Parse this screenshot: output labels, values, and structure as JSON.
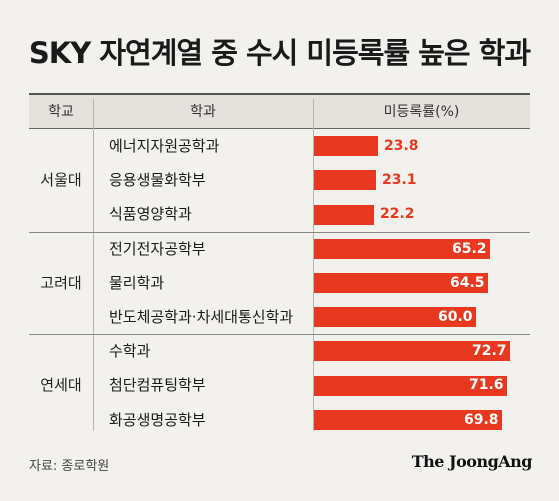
{
  "title": "SKY 자연계열 중 수시 미등록률 높은 학과",
  "headers": {
    "school": "학교",
    "dept": "학과",
    "rate": "미등록률(%)"
  },
  "chart_data": {
    "type": "bar",
    "title": "SKY 자연계열 중 수시 미등록률 높은 학과",
    "ylabel": "미등록률(%)",
    "ylim": [
      0,
      80
    ],
    "groups": [
      {
        "school": "서울대",
        "rows": [
          {
            "dept": "에너지자원공학과",
            "value": 23.8,
            "label": "23.8"
          },
          {
            "dept": "응용생물화학부",
            "value": 23.1,
            "label": "23.1"
          },
          {
            "dept": "식품영양학과",
            "value": 22.2,
            "label": "22.2"
          }
        ]
      },
      {
        "school": "고려대",
        "rows": [
          {
            "dept": "전기전자공학부",
            "value": 65.2,
            "label": "65.2"
          },
          {
            "dept": "물리학과",
            "value": 64.5,
            "label": "64.5"
          },
          {
            "dept": "반도체공학과·차세대통신학과",
            "value": 60.0,
            "label": "60.0"
          }
        ]
      },
      {
        "school": "연세대",
        "rows": [
          {
            "dept": "수학과",
            "value": 72.7,
            "label": "72.7"
          },
          {
            "dept": "첨단컴퓨팅학부",
            "value": 71.6,
            "label": "71.6"
          },
          {
            "dept": "화공생명공학부",
            "value": 69.8,
            "label": "69.8"
          }
        ]
      }
    ]
  },
  "source": "자료: 종로학원",
  "logo": "The JoongAng",
  "colors": {
    "bar": "#e8381f",
    "background": "#f3f1ee",
    "header_bg": "#e5e2dd"
  }
}
